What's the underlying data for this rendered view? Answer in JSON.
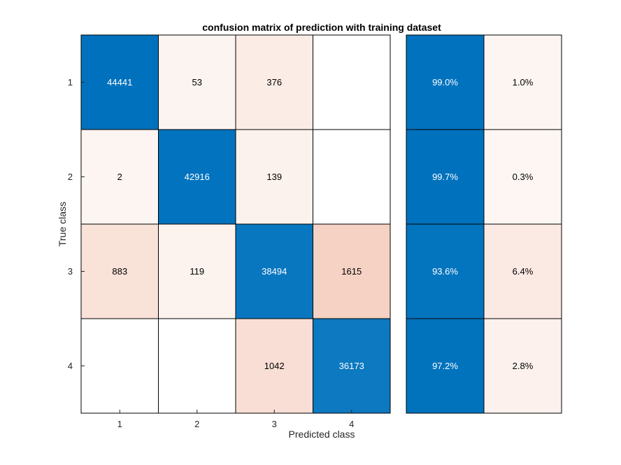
{
  "chart_data": {
    "type": "heatmap",
    "title": "confusion matrix of prediction with training dataset",
    "xlabel": "Predicted class",
    "ylabel": "True class",
    "x_tick_labels": [
      "1",
      "2",
      "3",
      "4"
    ],
    "y_tick_labels": [
      "1",
      "2",
      "3",
      "4"
    ],
    "matrix": [
      [
        44441,
        53,
        376,
        null
      ],
      [
        2,
        42916,
        139,
        null
      ],
      [
        883,
        119,
        38494,
        1615
      ],
      [
        null,
        null,
        1042,
        36173
      ]
    ],
    "row_summary": [
      [
        "99.0%",
        "1.0%"
      ],
      [
        "99.7%",
        "0.3%"
      ],
      [
        "93.6%",
        "6.4%"
      ],
      [
        "97.2%",
        "2.8%"
      ]
    ],
    "colors": {
      "diagonal_high": "#0072bd",
      "off_diagonal": "#d95319",
      "grid": "#000000",
      "text_dark": "#000000",
      "text_light": "#ffffff"
    }
  }
}
